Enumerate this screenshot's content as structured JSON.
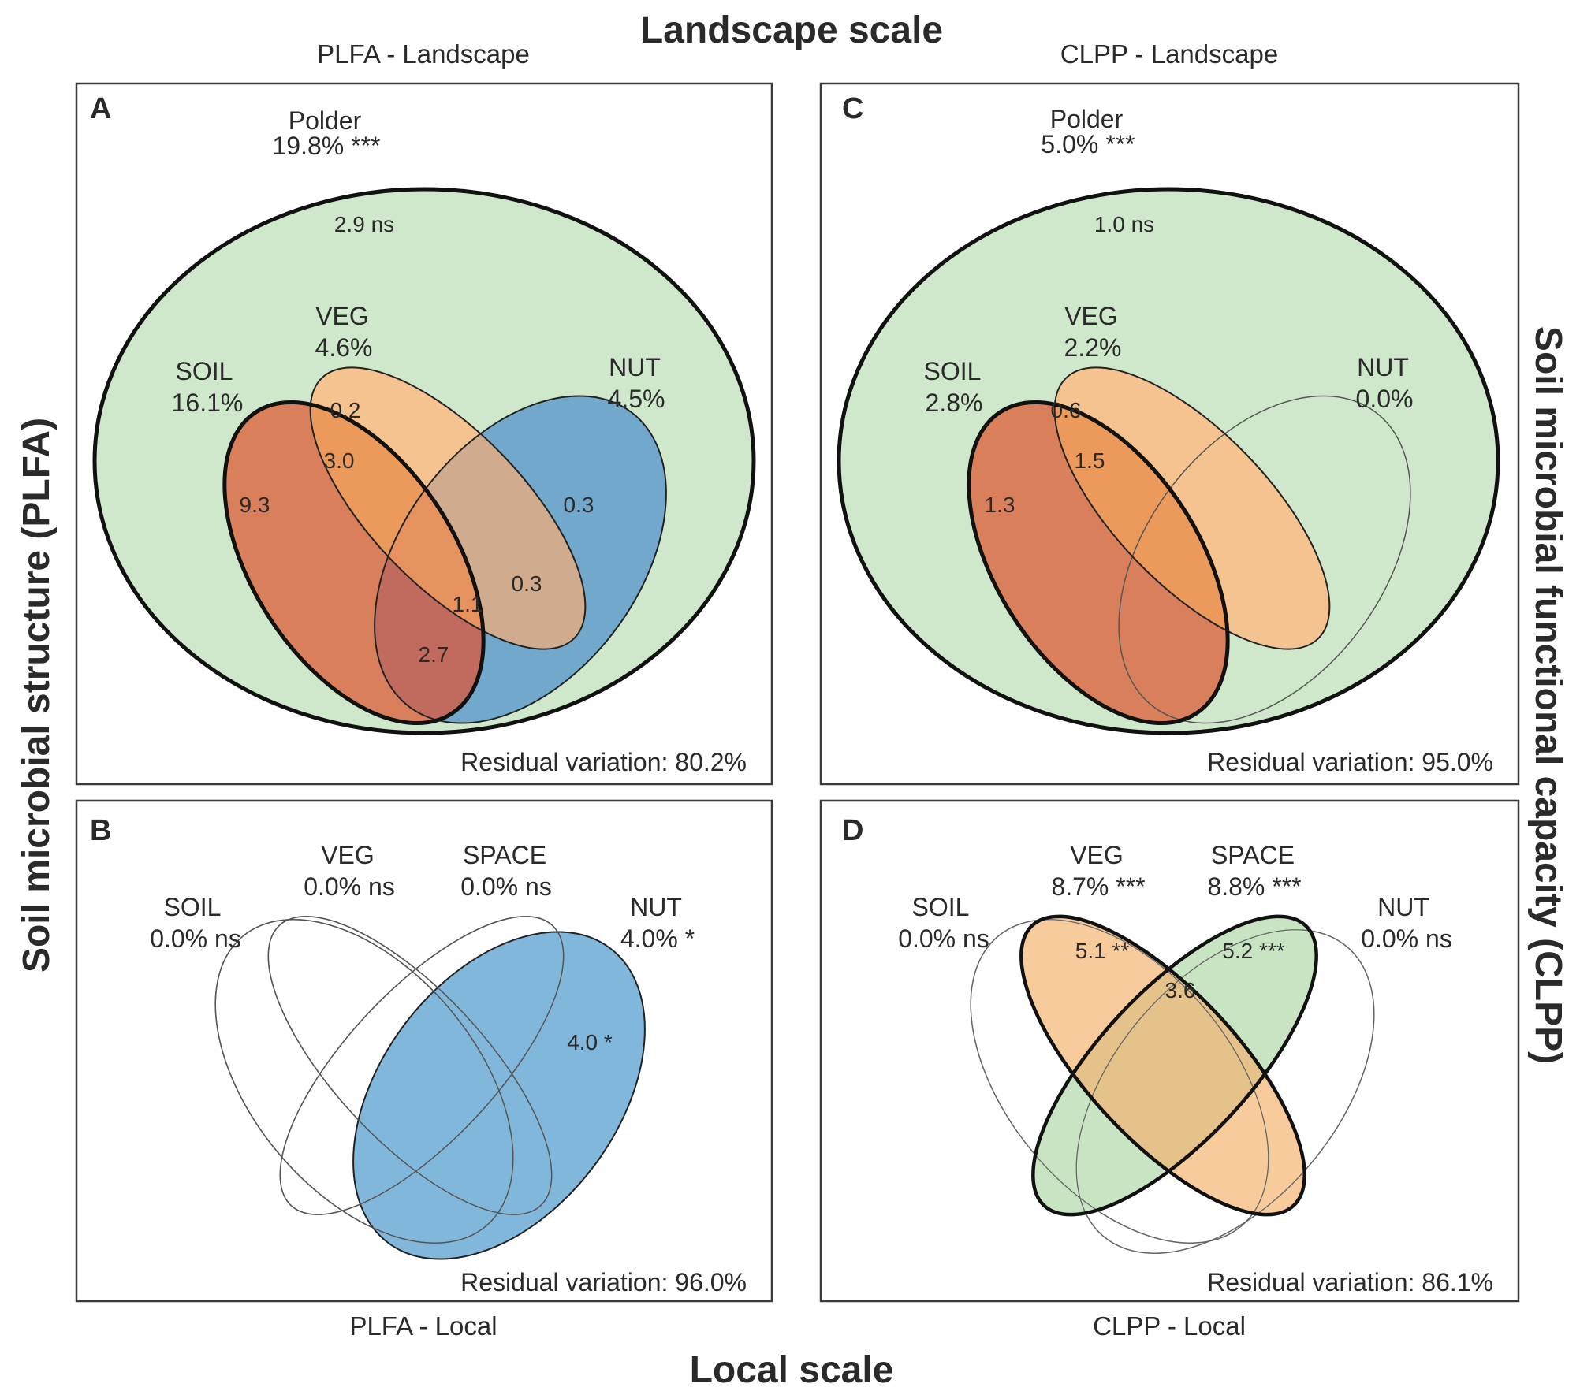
{
  "figure": {
    "title_top": "Landscape scale",
    "title_bottom": "Local scale",
    "ylabel_left": "Soil microbial structure (PLFA)",
    "ylabel_right": "Soil microbial functional capacity (CLPP)",
    "colors": {
      "polder": "#cfe8cb",
      "soil": "#d97f5b",
      "veg": "#f4c38f",
      "nut": "#72a8cb",
      "nut_local": "#7db4db",
      "soil_veg": "#eb9a5c",
      "soil_nut": "#c16a5e",
      "veg_nut": "#d0ab8d",
      "all3": "#e6925e",
      "veg_local": "#f8cb9d",
      "space_local": "#c9e4c3",
      "veg_space": "#e6c28b"
    }
  },
  "panels": {
    "A": {
      "letter": "A",
      "title": "PLFA - Landscape",
      "residual": "Residual variation: 80.2%",
      "polder": {
        "name": "Polder",
        "value": "19.8% ***",
        "unique": "2.9 ns"
      },
      "soil": {
        "name": "SOIL",
        "value": "16.1%",
        "unique": "9.3"
      },
      "veg": {
        "name": "VEG",
        "value": "4.6%",
        "unique": "0.2"
      },
      "nut": {
        "name": "NUT",
        "value": "4.5%",
        "unique": "0.3"
      },
      "shared": {
        "soil_veg": "3.0",
        "veg_nut": "0.3",
        "all3": "1.1",
        "soil_nut": "2.7"
      }
    },
    "B": {
      "letter": "B",
      "title": "PLFA - Local",
      "residual": "Residual variation: 96.0%",
      "soil": {
        "name": "SOIL",
        "value": "0.0% ns"
      },
      "veg": {
        "name": "VEG",
        "value": "0.0% ns"
      },
      "space": {
        "name": "SPACE",
        "value": "0.0% ns"
      },
      "nut": {
        "name": "NUT",
        "value": "4.0% *",
        "unique": "4.0 *"
      }
    },
    "C": {
      "letter": "C",
      "title": "CLPP - Landscape",
      "residual": "Residual variation: 95.0%",
      "polder": {
        "name": "Polder",
        "value": "5.0% ***",
        "unique": "1.0 ns"
      },
      "soil": {
        "name": "SOIL",
        "value": "2.8%",
        "unique": "1.3"
      },
      "veg": {
        "name": "VEG",
        "value": "2.2%",
        "unique": "0.6"
      },
      "nut": {
        "name": "NUT",
        "value": "0.0%"
      },
      "shared": {
        "soil_veg": "1.5"
      }
    },
    "D": {
      "letter": "D",
      "title": "CLPP - Local",
      "residual": "Residual variation: 86.1%",
      "soil": {
        "name": "SOIL",
        "value": "0.0% ns"
      },
      "veg": {
        "name": "VEG",
        "value": "8.7% ***",
        "unique": "5.1 **"
      },
      "space": {
        "name": "SPACE",
        "value": "8.8% ***",
        "unique": "5.2 ***"
      },
      "nut": {
        "name": "NUT",
        "value": "0.0% ns"
      },
      "shared": {
        "veg_space": "3.6"
      }
    }
  }
}
